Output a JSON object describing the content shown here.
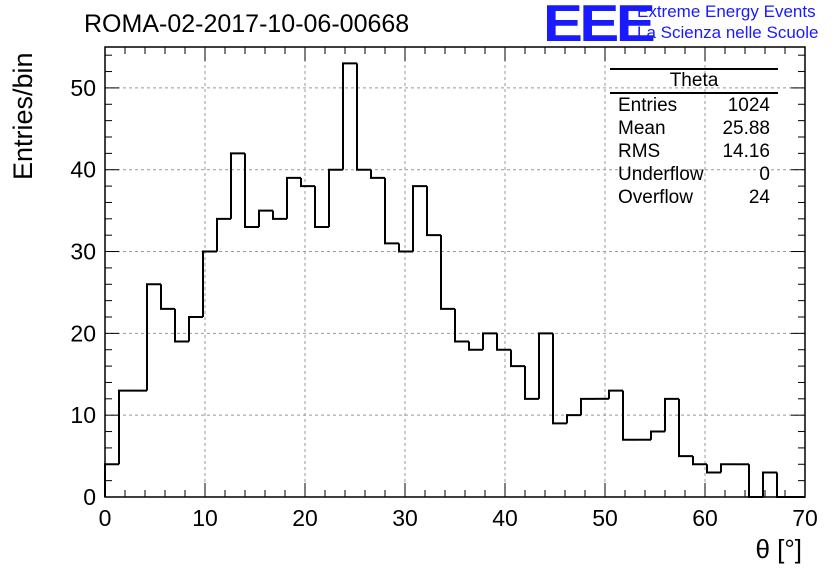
{
  "header": {
    "title": "ROMA-02-2017-10-06-00668",
    "logo_text": "EEE",
    "logo_line1": "Extreme Energy Events",
    "logo_line2": "La Scienza nelle Scuole",
    "accent_color": "#1a1aff"
  },
  "stats": {
    "name": "Theta",
    "rows": [
      {
        "label": "Entries",
        "value": "1024"
      },
      {
        "label": "Mean",
        "value": "25.88"
      },
      {
        "label": "RMS",
        "value": "14.16"
      },
      {
        "label": "Underflow",
        "value": "0"
      },
      {
        "label": "Overflow",
        "value": "24"
      }
    ]
  },
  "chart_data": {
    "type": "bar",
    "xlabel": "θ [°]",
    "ylabel": "Entries/bin",
    "xlim": [
      0,
      70
    ],
    "ylim": [
      0,
      55
    ],
    "bin_width": 1.4,
    "values": [
      4,
      13,
      13,
      26,
      23,
      19,
      22,
      30,
      34,
      42,
      33,
      35,
      34,
      39,
      38,
      33,
      40,
      53,
      40,
      39,
      31,
      30,
      38,
      32,
      23,
      19,
      18,
      20,
      18,
      16,
      12,
      20,
      9,
      10,
      12,
      12,
      13,
      7,
      7,
      8,
      12,
      5,
      4,
      3,
      4,
      4,
      0,
      3,
      0,
      0
    ],
    "xticks": [
      "0",
      "10",
      "20",
      "30",
      "40",
      "50",
      "60",
      "70"
    ],
    "yticks": [
      "0",
      "10",
      "20",
      "30",
      "40",
      "50"
    ],
    "grid": true,
    "line_color": "#000000"
  }
}
